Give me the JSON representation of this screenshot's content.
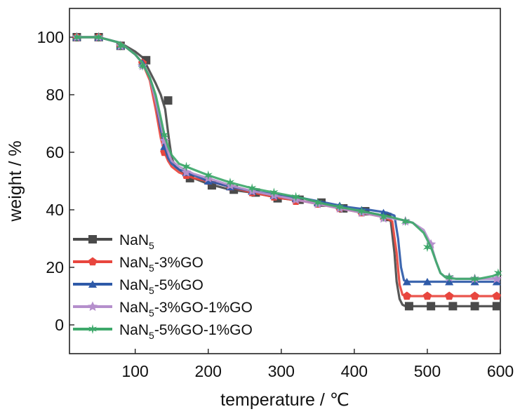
{
  "chart_data": {
    "type": "line",
    "xlabel": "temperature / ℃",
    "ylabel": "weight / %",
    "xlim": [
      10,
      600
    ],
    "ylim": [
      -10,
      110
    ],
    "x_ticks": [
      100,
      200,
      300,
      400,
      500,
      600
    ],
    "y_ticks": [
      0,
      20,
      40,
      60,
      80,
      100
    ],
    "grid": false,
    "legend_placement": "bottom-left",
    "series": [
      {
        "name": "NaN5",
        "legend_base": "NaN",
        "legend_sub": "5",
        "legend_suffix": "",
        "color": "#4a4a4a",
        "marker": "square",
        "x": [
          20,
          50,
          80,
          100,
          110,
          120,
          128,
          135,
          141,
          146,
          150,
          155,
          165,
          180,
          200,
          230,
          260,
          300,
          330,
          360,
          390,
          420,
          440,
          450,
          455,
          458,
          462,
          466,
          470,
          480,
          500,
          540,
          570,
          600
        ],
        "y": [
          100,
          100,
          98,
          95,
          93,
          88,
          84,
          80,
          75,
          65,
          58,
          55,
          53,
          51,
          49,
          47,
          46,
          44,
          43,
          42,
          40,
          39,
          38,
          36,
          25,
          15,
          9,
          7,
          6.5,
          6.5,
          6.5,
          6.5,
          6.5,
          6.5
        ],
        "markers_x": [
          20,
          50,
          80,
          115,
          145,
          175,
          205,
          235,
          265,
          295,
          325,
          355,
          385,
          415,
          445,
          475,
          505,
          535,
          565,
          595
        ],
        "markers_y": [
          100,
          100,
          97,
          92,
          78,
          51,
          48.5,
          47,
          46,
          44,
          43.5,
          42.5,
          40.5,
          39.5,
          37.5,
          6.5,
          6.5,
          6.5,
          6.5,
          6.5
        ]
      },
      {
        "name": "NaN5-3%GO",
        "legend_base": "NaN",
        "legend_sub": "5",
        "legend_suffix": "-3%GO",
        "color": "#e8463e",
        "marker": "pentagon",
        "x": [
          20,
          50,
          80,
          100,
          110,
          120,
          128,
          135,
          140,
          145,
          150,
          160,
          180,
          200,
          230,
          260,
          300,
          330,
          360,
          390,
          420,
          440,
          452,
          458,
          462,
          466,
          470,
          480,
          500,
          540,
          570,
          600
        ],
        "y": [
          100,
          100,
          98,
          94,
          91,
          85,
          75,
          65,
          60,
          57,
          55,
          53,
          51,
          50,
          48,
          46,
          44,
          43,
          41.5,
          40,
          38.5,
          37.5,
          36,
          25,
          14,
          10.5,
          10,
          10,
          10,
          10,
          10,
          10
        ],
        "markers_x": [
          20,
          50,
          80,
          110,
          140,
          170,
          200,
          230,
          260,
          290,
          320,
          350,
          380,
          410,
          440,
          472,
          500,
          530,
          565,
          595
        ],
        "markers_y": [
          100,
          100,
          97,
          91,
          60,
          52,
          50,
          48,
          46,
          44.5,
          43,
          42,
          40.5,
          39,
          37.5,
          10,
          10,
          10,
          10,
          10
        ]
      },
      {
        "name": "NaN5-5%GO",
        "legend_base": "NaN",
        "legend_sub": "5",
        "legend_suffix": "-5%GO",
        "color": "#2e5aa8",
        "marker": "triangle",
        "x": [
          20,
          50,
          80,
          100,
          110,
          120,
          128,
          135,
          140,
          145,
          150,
          160,
          180,
          200,
          230,
          260,
          300,
          330,
          360,
          390,
          420,
          445,
          455,
          460,
          464,
          468,
          472,
          480,
          500,
          540,
          570,
          600
        ],
        "y": [
          100,
          100,
          98,
          94,
          91,
          86,
          78,
          68,
          62,
          58,
          56,
          54,
          52,
          50,
          48,
          46.5,
          45,
          44,
          42.5,
          41,
          40,
          39,
          38,
          30,
          20,
          15.5,
          15,
          15,
          15,
          15,
          15,
          15
        ],
        "markers_x": [
          20,
          50,
          80,
          110,
          140,
          170,
          200,
          230,
          260,
          290,
          320,
          350,
          380,
          410,
          440,
          472,
          500,
          530,
          565,
          595
        ],
        "markers_y": [
          100,
          100,
          97,
          91,
          62,
          53,
          50,
          48,
          46.5,
          45,
          44,
          42.5,
          41.5,
          40,
          39,
          15,
          15,
          15,
          15,
          15
        ]
      },
      {
        "name": "NaN5-3%GO-1%GO",
        "legend_base": "NaN",
        "legend_sub": "5",
        "legend_suffix": "-3%GO-1%GO",
        "color": "#b58fcc",
        "marker": "star",
        "x": [
          20,
          50,
          80,
          100,
          110,
          120,
          128,
          135,
          140,
          145,
          150,
          160,
          180,
          200,
          230,
          260,
          300,
          330,
          360,
          390,
          420,
          450,
          465,
          480,
          495,
          505,
          512,
          518,
          525,
          540,
          570,
          600
        ],
        "y": [
          100,
          100,
          98,
          94,
          91,
          86,
          78,
          70,
          64,
          60,
          57,
          55,
          52.5,
          51,
          48.5,
          46.5,
          44.5,
          43,
          41.5,
          40,
          38.5,
          37,
          36.5,
          35.5,
          33,
          28,
          22,
          18,
          16.5,
          16,
          16,
          16
        ],
        "markers_x": [
          20,
          50,
          80,
          110,
          140,
          170,
          200,
          230,
          260,
          290,
          320,
          350,
          380,
          410,
          440,
          470,
          505,
          530,
          565,
          595
        ],
        "markers_y": [
          100,
          100,
          97,
          90,
          64,
          53,
          51,
          48.5,
          46.5,
          45,
          43.5,
          42,
          40.5,
          39,
          37,
          36,
          28,
          16.5,
          16,
          16
        ]
      },
      {
        "name": "NaN5-5%GO-1%GO",
        "legend_base": "NaN",
        "legend_sub": "5",
        "legend_suffix": "-5%GO-1%GO",
        "color": "#3ea86b",
        "marker": "asterisk",
        "x": [
          20,
          50,
          80,
          100,
          110,
          120,
          128,
          135,
          140,
          145,
          150,
          160,
          180,
          200,
          230,
          260,
          300,
          330,
          360,
          390,
          420,
          450,
          465,
          480,
          495,
          505,
          512,
          518,
          525,
          540,
          570,
          590,
          600
        ],
        "y": [
          100,
          100,
          98,
          94,
          91,
          86,
          80,
          72,
          66,
          62,
          59,
          56,
          54,
          52,
          49.5,
          47.5,
          45.5,
          44,
          42,
          40.5,
          39,
          37.5,
          36.5,
          35.5,
          32,
          27,
          22,
          18,
          16.5,
          16,
          16,
          17,
          18
        ],
        "markers_x": [
          20,
          50,
          80,
          110,
          140,
          170,
          200,
          230,
          260,
          290,
          320,
          350,
          380,
          410,
          440,
          470,
          500,
          530,
          565,
          597
        ],
        "markers_y": [
          100,
          100,
          97,
          90,
          66,
          55,
          52,
          49.5,
          47.5,
          46,
          44.5,
          42.5,
          41,
          39.5,
          37.5,
          36,
          27,
          16.5,
          16,
          18
        ]
      }
    ]
  }
}
